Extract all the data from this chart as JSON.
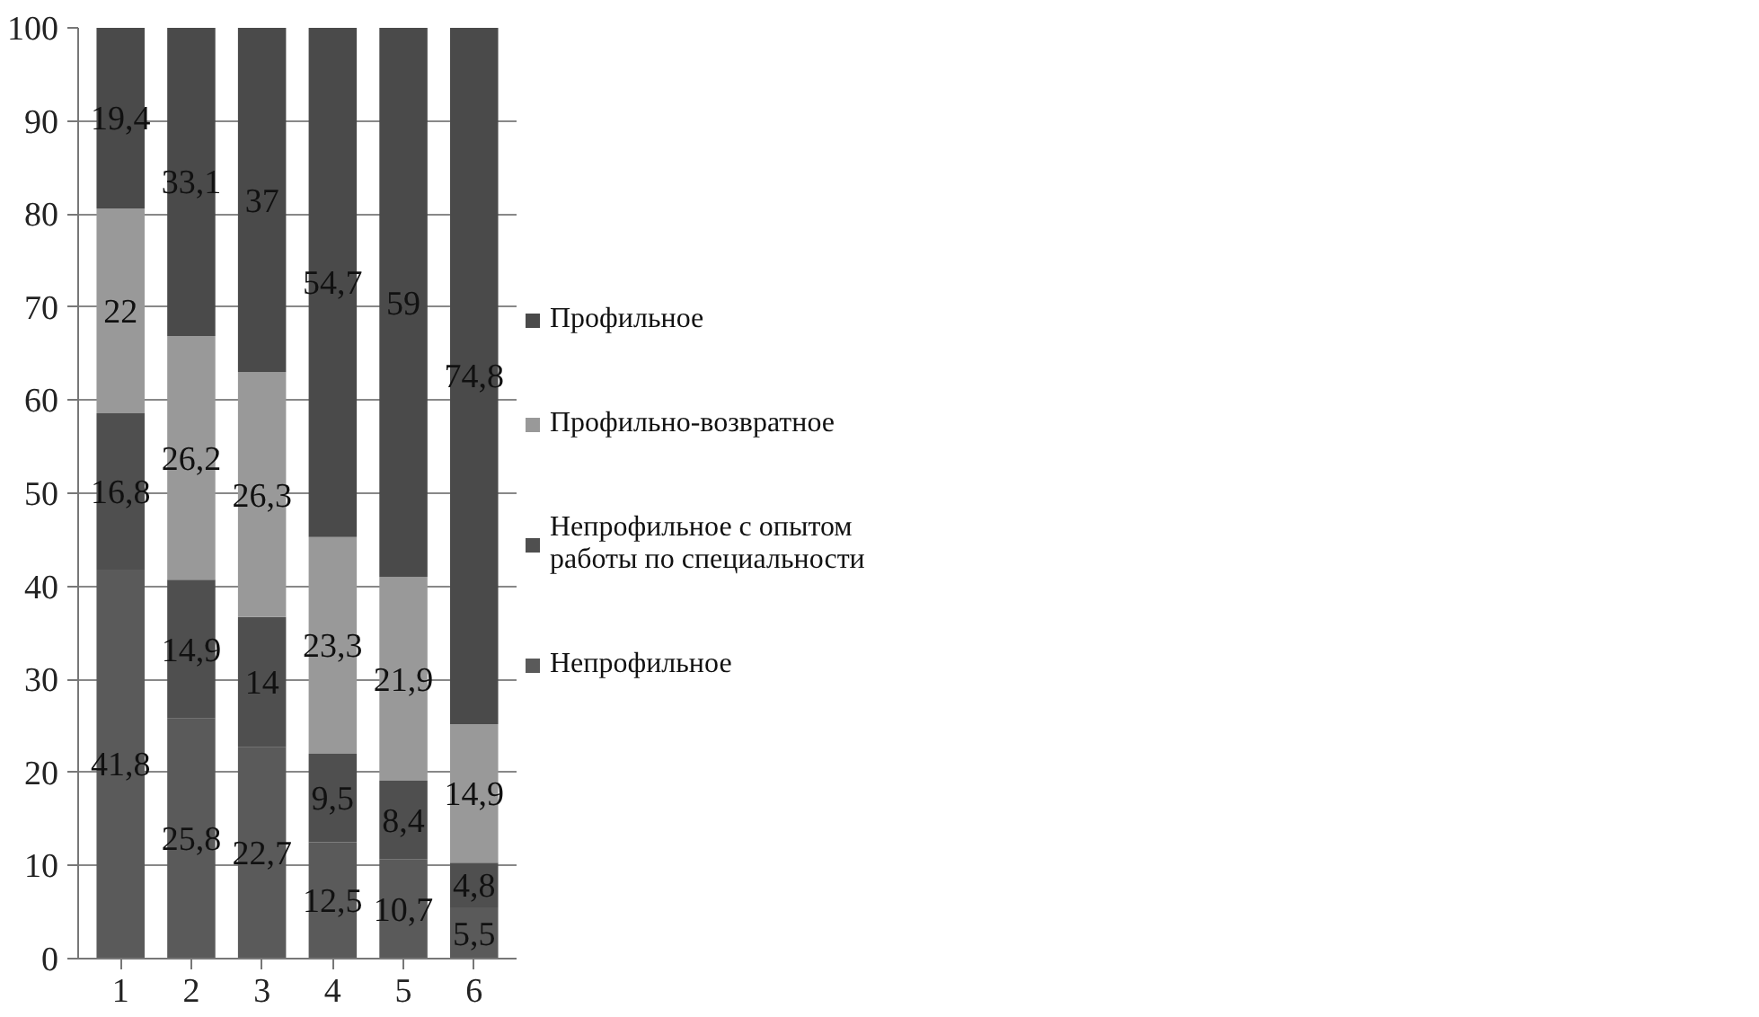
{
  "chart_data": {
    "type": "bar",
    "stacked": true,
    "categories": [
      "1",
      "2",
      "3",
      "4",
      "5",
      "6"
    ],
    "series": [
      {
        "name": "Непрофильное",
        "color": "#5a5a5a",
        "values": [
          41.8,
          25.8,
          22.7,
          12.5,
          10.7,
          5.5
        ],
        "value_labels": [
          "41,8",
          "25,8",
          "22,7",
          "12,5",
          "10,7",
          "5,5"
        ]
      },
      {
        "name": "Непрофильное с опытом работы по специальности",
        "color": "#4f4f4f",
        "values": [
          16.8,
          14.9,
          14,
          9.5,
          8.4,
          4.8
        ],
        "value_labels": [
          "16,8",
          "14,9",
          "14",
          "9,5",
          "8,4",
          "4,8"
        ]
      },
      {
        "name": "Профильно-возвратное",
        "color": "#999999",
        "values": [
          22,
          26.2,
          26.3,
          23.3,
          21.9,
          14.9
        ],
        "value_labels": [
          "22",
          "26,2",
          "26,3",
          "23,3",
          "21,9",
          "14,9"
        ]
      },
      {
        "name": "Профильное",
        "color": "#4a4a4a",
        "values": [
          19.4,
          33.1,
          37,
          54.7,
          59,
          74.8
        ],
        "value_labels": [
          "19,4",
          "33,1",
          "37",
          "54,7",
          "59",
          "74,8"
        ]
      }
    ],
    "ylim": [
      0,
      100
    ],
    "yticks": [
      0,
      10,
      20,
      30,
      40,
      50,
      60,
      70,
      80,
      90,
      100
    ],
    "grid": "y",
    "legend": "right"
  }
}
